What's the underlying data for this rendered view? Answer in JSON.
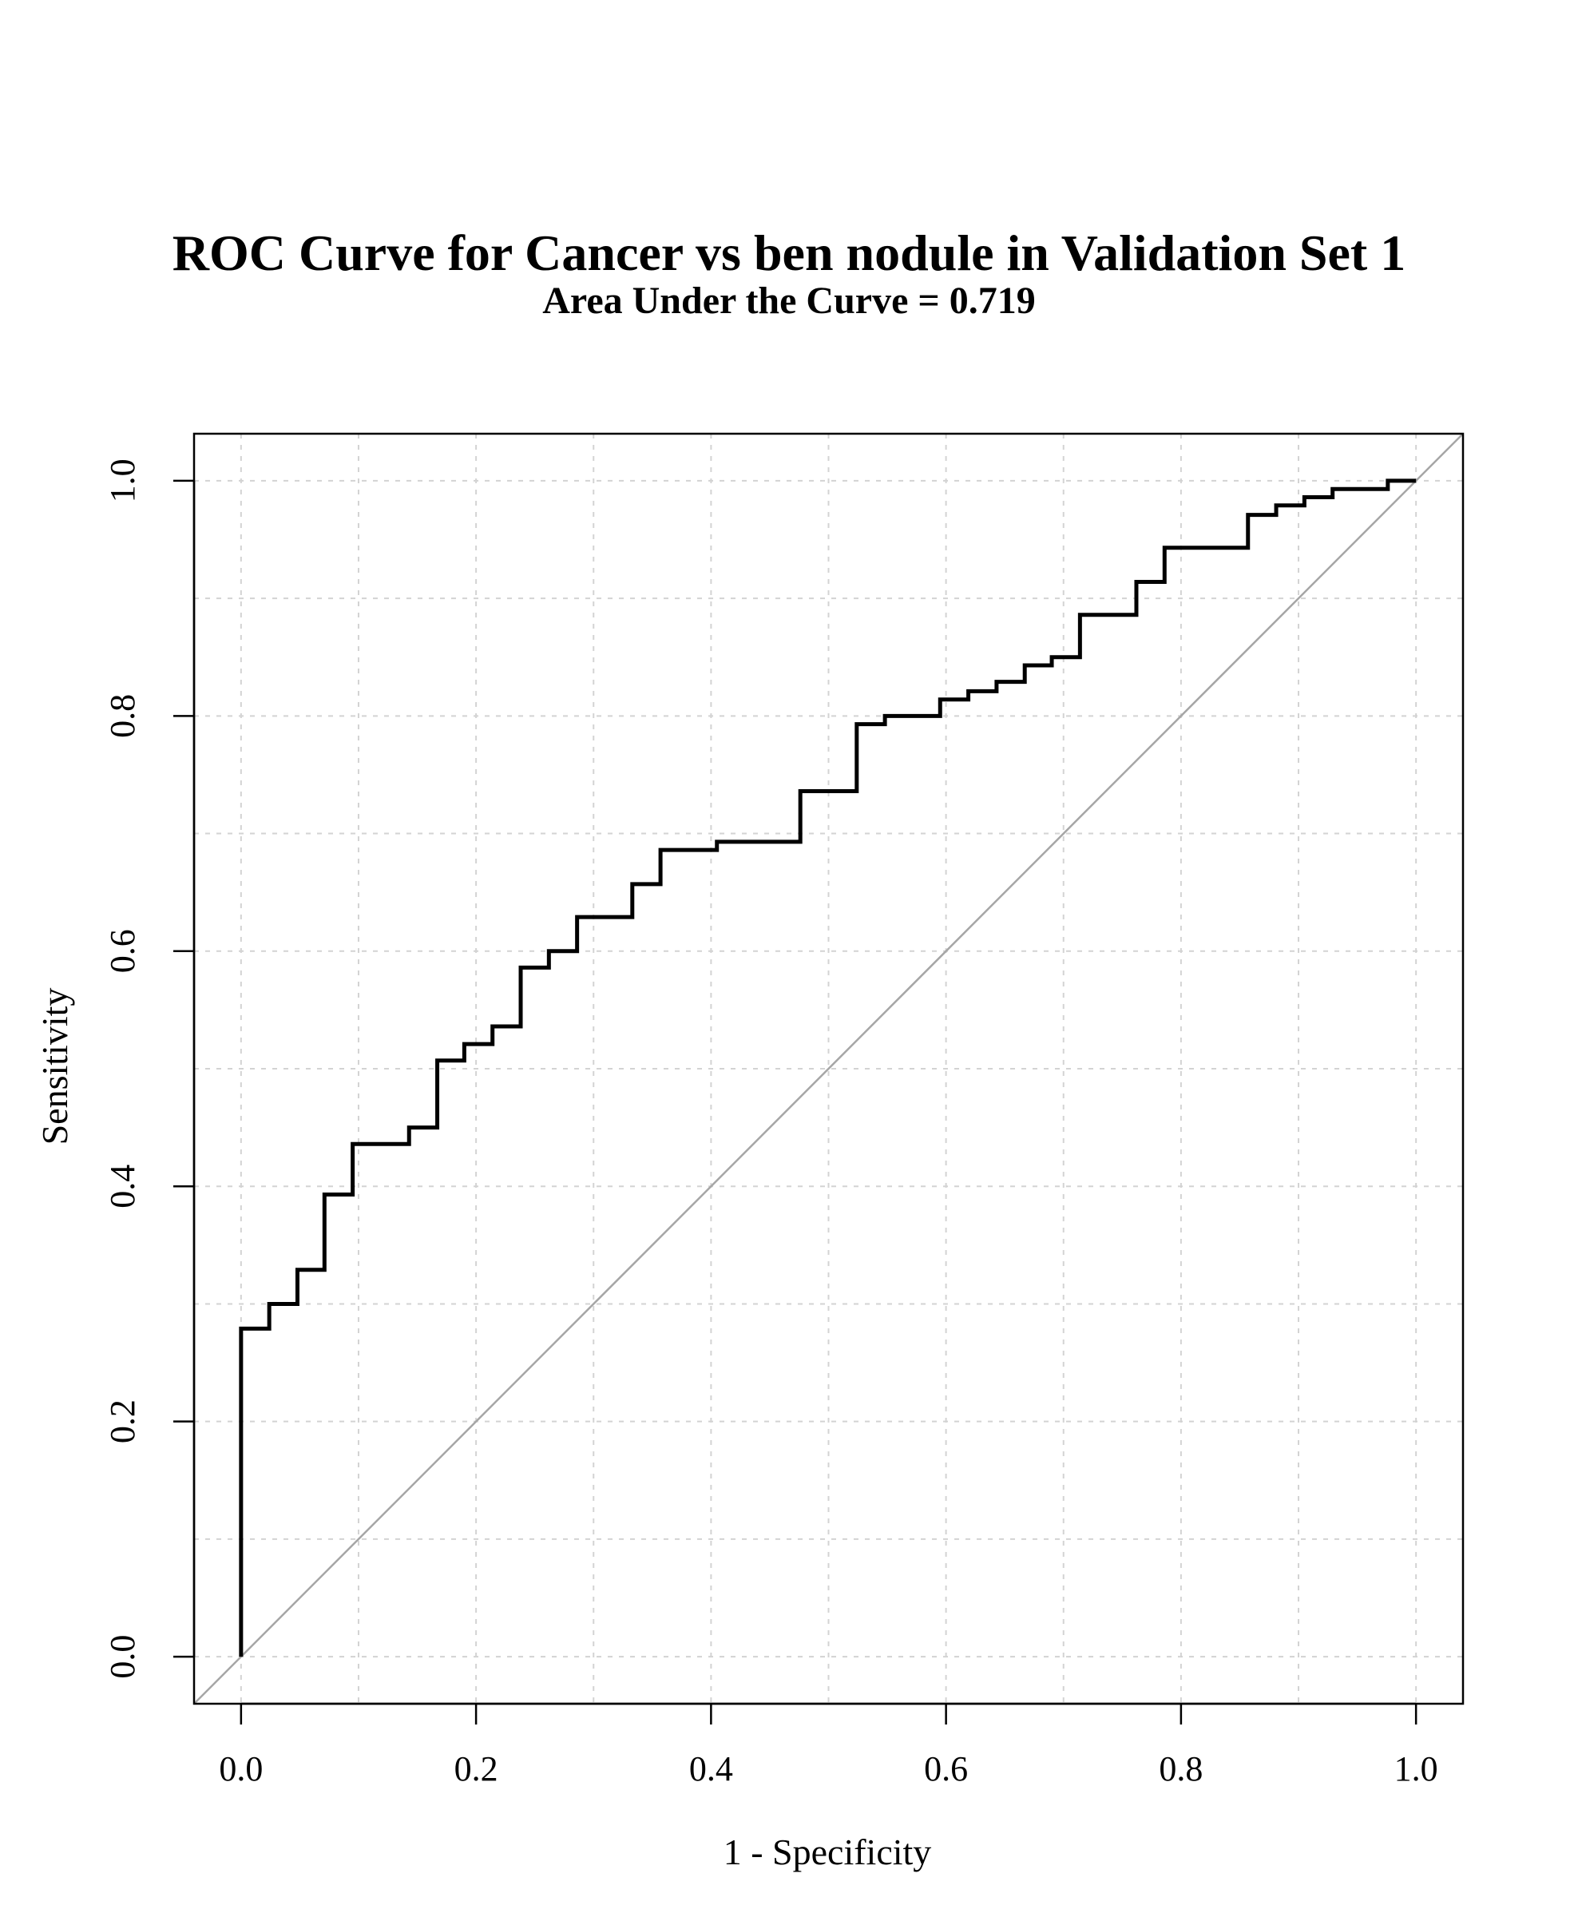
{
  "chart_data": {
    "type": "line",
    "title": "ROC Curve for Cancer vs ben nodule in Validation Set 1",
    "subtitle": "Area Under the Curve =  0.719",
    "xlabel": "1 - Specificity",
    "ylabel": "Sensitivity",
    "xlim": [
      -0.04,
      1.04
    ],
    "ylim": [
      -0.04,
      1.04
    ],
    "xticks": [
      0.0,
      0.2,
      0.4,
      0.6,
      0.8,
      1.0
    ],
    "yticks": [
      0.0,
      0.2,
      0.4,
      0.6,
      0.8,
      1.0
    ],
    "xtick_labels": [
      "0.0",
      "0.2",
      "0.4",
      "0.6",
      "0.8",
      "1.0"
    ],
    "ytick_labels": [
      "0.0",
      "0.2",
      "0.4",
      "0.6",
      "0.8",
      "1.0"
    ],
    "grid": true,
    "grid_step": 0.1,
    "reference_line": {
      "x": [
        0,
        1
      ],
      "y": [
        0,
        1
      ],
      "color": "#a6a6a6"
    },
    "series": [
      {
        "color": "#000000",
        "style": "step",
        "x": [
          0.0,
          0.0,
          0.024,
          0.024,
          0.048,
          0.048,
          0.071,
          0.071,
          0.095,
          0.095,
          0.143,
          0.143,
          0.167,
          0.167,
          0.19,
          0.19,
          0.214,
          0.214,
          0.238,
          0.238,
          0.262,
          0.262,
          0.286,
          0.286,
          0.333,
          0.333,
          0.357,
          0.357,
          0.405,
          0.405,
          0.476,
          0.476,
          0.524,
          0.524,
          0.548,
          0.548,
          0.595,
          0.595,
          0.619,
          0.619,
          0.643,
          0.643,
          0.667,
          0.667,
          0.69,
          0.69,
          0.714,
          0.714,
          0.762,
          0.762,
          0.786,
          0.786,
          0.857,
          0.857,
          0.881,
          0.881,
          0.905,
          0.905,
          0.929,
          0.929,
          0.976,
          0.976,
          1.0
        ],
        "y": [
          0.0,
          0.279,
          0.279,
          0.3,
          0.3,
          0.329,
          0.329,
          0.393,
          0.393,
          0.436,
          0.436,
          0.45,
          0.45,
          0.507,
          0.507,
          0.521,
          0.521,
          0.536,
          0.536,
          0.586,
          0.586,
          0.6,
          0.6,
          0.629,
          0.629,
          0.657,
          0.657,
          0.686,
          0.686,
          0.693,
          0.693,
          0.736,
          0.736,
          0.793,
          0.793,
          0.8,
          0.8,
          0.814,
          0.814,
          0.821,
          0.821,
          0.829,
          0.829,
          0.843,
          0.843,
          0.85,
          0.85,
          0.886,
          0.886,
          0.914,
          0.914,
          0.943,
          0.943,
          0.971,
          0.971,
          0.979,
          0.979,
          0.986,
          0.986,
          0.993,
          0.993,
          1.0,
          1.0
        ]
      }
    ]
  }
}
